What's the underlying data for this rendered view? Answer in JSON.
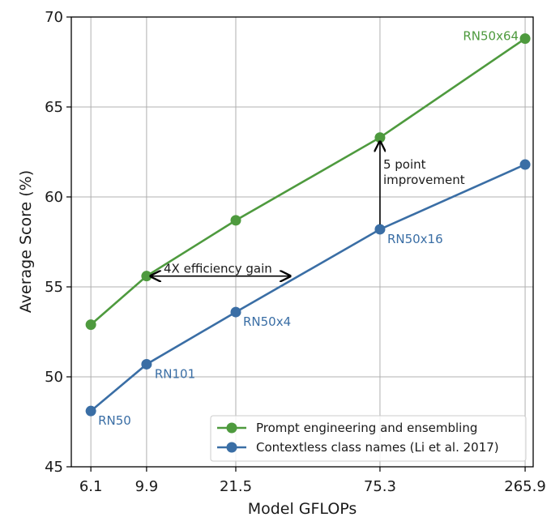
{
  "chart_data": {
    "type": "line",
    "title": "",
    "xlabel": "Model GFLOPs",
    "ylabel": "Average Score (%)",
    "x": [
      6.1,
      9.9,
      21.5,
      75.3,
      265.9
    ],
    "x_tick_labels": [
      "6.1",
      "9.9",
      "21.5",
      "75.3",
      "265.9"
    ],
    "ylim": [
      45,
      70
    ],
    "y_ticks": [
      45,
      50,
      55,
      60,
      65,
      70
    ],
    "grid": true,
    "legend_position": "bottom-right",
    "series": [
      {
        "name": "Prompt engineering and ensembling",
        "color": "#4e9a3e",
        "values": [
          52.9,
          55.6,
          58.7,
          63.3,
          68.8
        ]
      },
      {
        "name": "Contextless class names (Li et al. 2017)",
        "color": "#3a6ea5",
        "values": [
          48.1,
          50.7,
          53.6,
          58.2,
          61.8
        ]
      }
    ],
    "point_labels": [
      {
        "text": "RN50",
        "series": 1,
        "index": 0,
        "color": "#3a6ea5"
      },
      {
        "text": "RN101",
        "series": 1,
        "index": 1,
        "color": "#3a6ea5"
      },
      {
        "text": "RN50x4",
        "series": 1,
        "index": 2,
        "color": "#3a6ea5"
      },
      {
        "text": "RN50x16",
        "series": 1,
        "index": 3,
        "color": "#3a6ea5"
      },
      {
        "text": "RN50x64",
        "series": 0,
        "index": 4,
        "color": "#4e9a3e"
      }
    ],
    "annotations": [
      {
        "text": "4X efficiency gain",
        "type": "horizontal-arrow",
        "y": 55.6
      },
      {
        "lines": [
          "5 point",
          "improvement"
        ],
        "type": "vertical-arrow",
        "x_index": 3
      }
    ]
  }
}
